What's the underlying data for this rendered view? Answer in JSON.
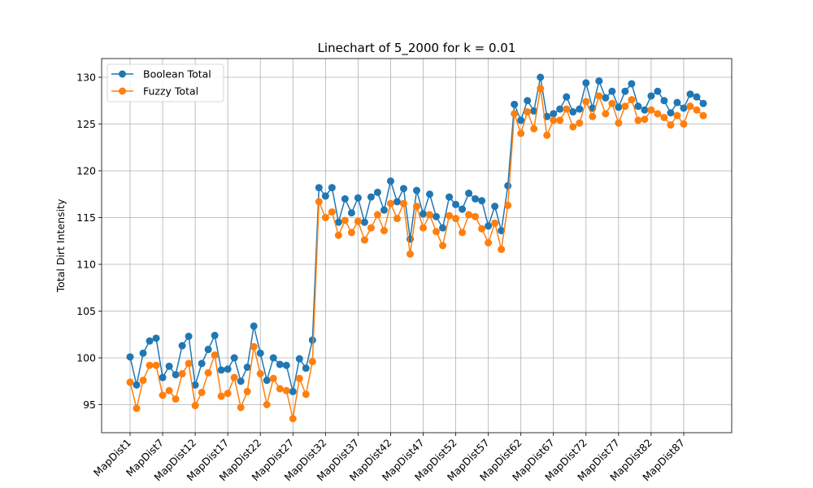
{
  "chart_data": {
    "type": "line",
    "title": "Linechart of 5_2000 for k = 0.01",
    "xlabel": "",
    "ylabel": "Total Dirt Intensity",
    "ylim": [
      92,
      132
    ],
    "yticks": [
      95,
      100,
      105,
      110,
      115,
      120,
      125,
      130
    ],
    "grid": true,
    "legend": "upper-left",
    "xtick_labels": [
      "MapDist1",
      "MapDist7",
      "MapDist12",
      "MapDist17",
      "MapDist22",
      "MapDist27",
      "MapDist32",
      "MapDist37",
      "MapDist42",
      "MapDist47",
      "MapDist52",
      "MapDist57",
      "MapDist62",
      "MapDist67",
      "MapDist72",
      "MapDist77",
      "MapDist82",
      "MapDist87"
    ],
    "series": [
      {
        "name": "Boolean Total",
        "color": "#1f77b4",
        "values": [
          100.1,
          97.1,
          100.5,
          101.8,
          102.1,
          97.9,
          99.1,
          98.2,
          101.3,
          102.3,
          97.1,
          99.4,
          100.9,
          102.4,
          98.7,
          98.8,
          100.0,
          97.5,
          99.0,
          103.4,
          100.5,
          97.6,
          100.0,
          99.3,
          99.2,
          96.4,
          99.9,
          98.9,
          101.9,
          118.2,
          117.3,
          118.2,
          114.5,
          117.0,
          115.5,
          117.1,
          114.5,
          117.2,
          117.7,
          115.8,
          118.9,
          116.7,
          118.1,
          112.7,
          117.9,
          115.4,
          117.5,
          115.1,
          113.9,
          117.2,
          116.4,
          115.9,
          117.6,
          117.0,
          116.8,
          114.1,
          116.2,
          113.6,
          118.4,
          127.1,
          125.4,
          127.5,
          126.4,
          130.0,
          125.8,
          126.1,
          126.6,
          127.9,
          126.3,
          126.6,
          129.4,
          126.7,
          129.6,
          127.8,
          128.5,
          126.8,
          128.5,
          129.3,
          126.9,
          126.5,
          128.0,
          128.5,
          127.5,
          126.2,
          127.3,
          126.7,
          128.2,
          127.9,
          127.2
        ],
        "note_index_start": 1
      },
      {
        "name": "Fuzzy Total",
        "color": "#ff7f0e",
        "values": [
          97.4,
          94.6,
          97.6,
          99.2,
          99.2,
          96.0,
          96.5,
          95.6,
          98.3,
          99.4,
          94.9,
          96.3,
          98.4,
          100.3,
          95.9,
          96.2,
          97.9,
          94.7,
          96.4,
          101.2,
          98.3,
          95.0,
          97.8,
          96.7,
          96.5,
          93.5,
          97.8,
          96.1,
          99.6,
          116.7,
          115.0,
          115.6,
          113.1,
          114.7,
          113.4,
          114.6,
          112.6,
          113.9,
          115.3,
          113.6,
          116.5,
          114.9,
          116.5,
          111.1,
          116.2,
          113.9,
          115.3,
          113.5,
          112.0,
          115.2,
          114.9,
          113.4,
          115.3,
          115.1,
          113.8,
          112.3,
          114.4,
          111.6,
          116.3,
          126.1,
          124.0,
          126.3,
          124.5,
          128.8,
          123.8,
          125.4,
          125.4,
          126.6,
          124.7,
          125.1,
          127.4,
          125.8,
          128.0,
          126.1,
          127.2,
          125.1,
          126.9,
          127.6,
          125.4,
          125.5,
          126.5,
          126.1,
          125.7,
          124.9,
          125.9,
          125.0,
          126.9,
          126.5,
          125.9
        ]
      }
    ]
  }
}
